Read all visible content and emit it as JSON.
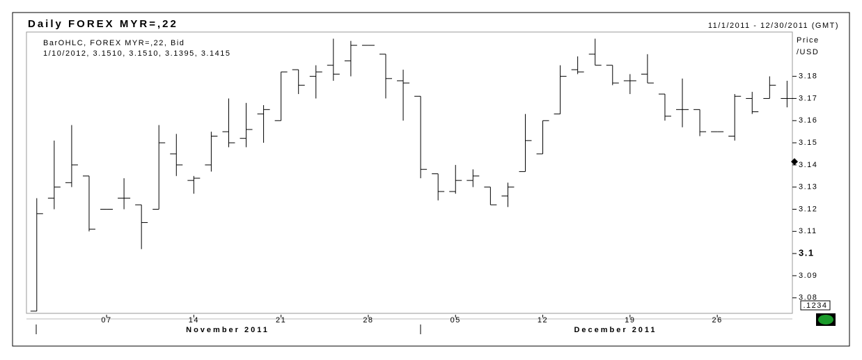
{
  "chart_data": {
    "type": "ohlc",
    "title": "Daily FOREX MYR=,22",
    "date_range": "11/1/2011 - 12/30/2011 (GMT)",
    "legend_name": "BarOHLC, FOREX MYR=,22, Bid",
    "legend_values": "1/10/2012, 3.1510, 3.1510, 3.1395, 3.1415",
    "y_label": [
      "Price",
      "/USD"
    ],
    "precision_label": ".1234",
    "last_price": 3.1415,
    "months": [
      "November 2011",
      "December 2011"
    ],
    "categories": [
      null,
      null,
      null,
      null,
      "07",
      null,
      null,
      null,
      null,
      "14",
      null,
      null,
      null,
      null,
      "21",
      null,
      null,
      null,
      null,
      "28",
      null,
      null,
      null,
      null,
      "05",
      null,
      null,
      null,
      null,
      "12",
      null,
      null,
      null,
      null,
      "19",
      null,
      null,
      null,
      null,
      "26",
      null,
      null,
      null,
      null
    ],
    "open": [
      3.074,
      3.125,
      3.132,
      3.135,
      3.12,
      3.125,
      3.122,
      3.12,
      3.145,
      3.133,
      3.14,
      3.155,
      3.152,
      3.163,
      3.16,
      3.183,
      3.18,
      3.185,
      3.187,
      3.194,
      3.19,
      3.178,
      3.171,
      3.136,
      3.128,
      3.133,
      3.13,
      3.126,
      3.137,
      3.145,
      3.163,
      3.183,
      3.19,
      3.185,
      3.178,
      3.181,
      3.172,
      3.165,
      3.165,
      3.155,
      3.153,
      3.17,
      3.17,
      3.17
    ],
    "high": [
      3.125,
      3.151,
      3.158,
      3.135,
      3.12,
      3.134,
      3.122,
      3.158,
      3.154,
      3.135,
      3.155,
      3.17,
      3.168,
      3.167,
      3.182,
      3.183,
      3.185,
      3.197,
      3.196,
      3.194,
      3.19,
      3.183,
      3.171,
      3.136,
      3.14,
      3.138,
      3.13,
      3.132,
      3.163,
      3.16,
      3.185,
      3.189,
      3.197,
      3.185,
      3.181,
      3.19,
      3.172,
      3.179,
      3.165,
      3.155,
      3.172,
      3.173,
      3.18,
      3.178
    ],
    "low": [
      3.074,
      3.12,
      3.13,
      3.11,
      3.12,
      3.12,
      3.102,
      3.12,
      3.135,
      3.127,
      3.137,
      3.148,
      3.148,
      3.15,
      3.16,
      3.172,
      3.17,
      3.178,
      3.18,
      3.194,
      3.17,
      3.16,
      3.134,
      3.124,
      3.127,
      3.13,
      3.122,
      3.121,
      3.137,
      3.145,
      3.163,
      3.181,
      3.185,
      3.176,
      3.172,
      3.177,
      3.16,
      3.157,
      3.153,
      3.155,
      3.151,
      3.163,
      3.17,
      3.166
    ],
    "close": [
      3.118,
      3.13,
      3.14,
      3.111,
      3.12,
      3.125,
      3.114,
      3.15,
      3.14,
      3.134,
      3.153,
      3.15,
      3.156,
      3.165,
      3.182,
      3.176,
      3.182,
      3.181,
      3.194,
      3.194,
      3.179,
      3.177,
      3.138,
      3.128,
      3.133,
      3.135,
      3.122,
      3.13,
      3.151,
      3.16,
      3.18,
      3.182,
      3.185,
      3.177,
      3.178,
      3.177,
      3.162,
      3.165,
      3.155,
      3.155,
      3.171,
      3.164,
      3.176,
      3.17
    ],
    "color": "#000000",
    "ylim": [
      3.073,
      3.2
    ],
    "yticks": [
      3.08,
      3.09,
      3.1,
      3.11,
      3.12,
      3.13,
      3.14,
      3.15,
      3.16,
      3.17,
      3.18
    ]
  }
}
